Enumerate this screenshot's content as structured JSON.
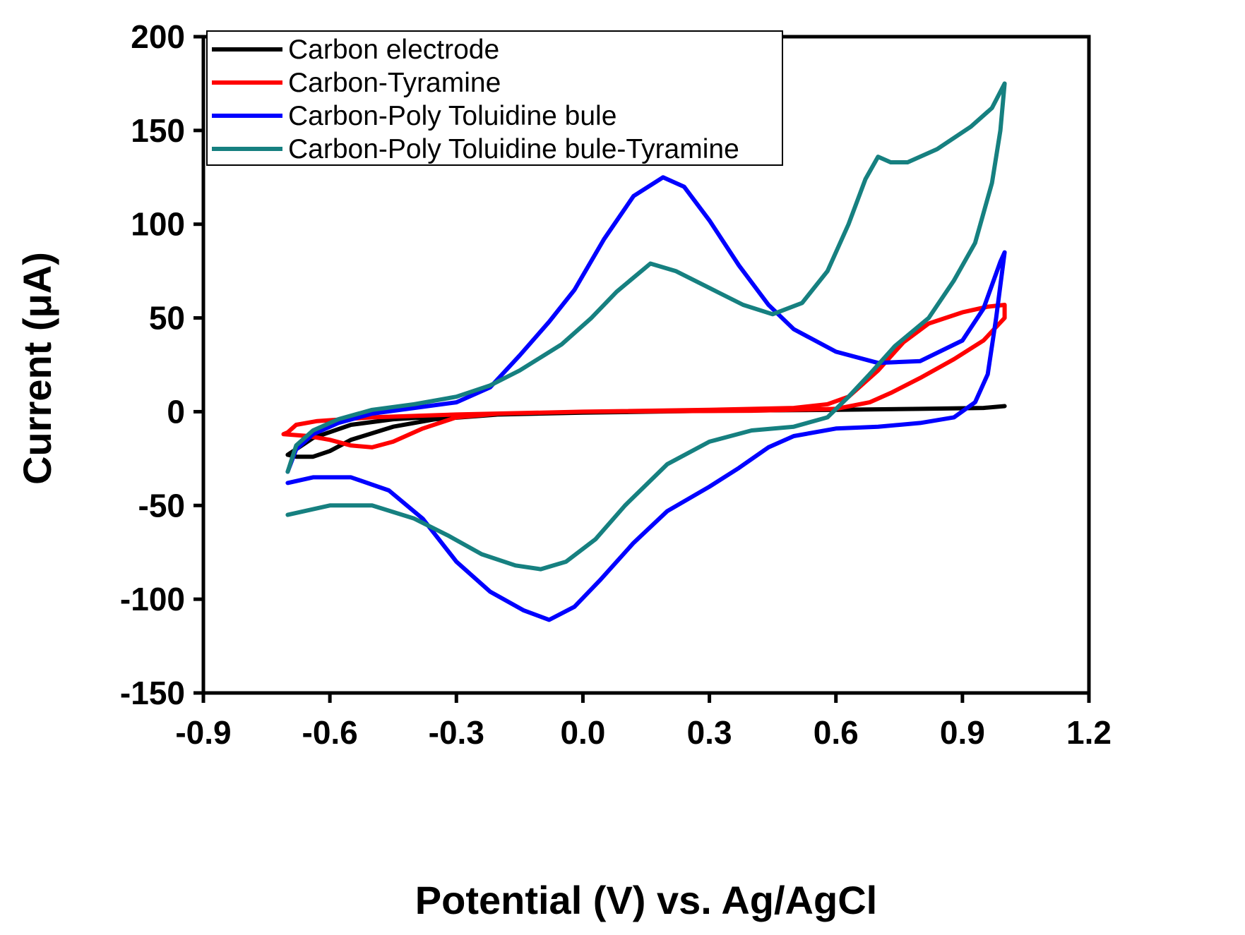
{
  "chart_data": {
    "type": "line",
    "title": "",
    "xlabel": "Potential (V) vs. Ag/AgCl",
    "ylabel": "Current (μA)",
    "xlim": [
      -0.9,
      1.2
    ],
    "ylim": [
      -150,
      200
    ],
    "x_ticks": [
      "-0.9",
      "-0.6",
      "-0.3",
      "0.0",
      "0.3",
      "0.6",
      "0.9",
      "1.2"
    ],
    "y_ticks": [
      "200",
      "150",
      "100",
      "50",
      "0",
      "-50",
      "-100",
      "-150"
    ],
    "grid": false,
    "legend_position": "top-left",
    "series": [
      {
        "name": "Carbon electrode",
        "color": "#000000",
        "points": [
          [
            -0.7,
            -23
          ],
          [
            -0.68,
            -20
          ],
          [
            -0.64,
            -14
          ],
          [
            -0.55,
            -7
          ],
          [
            -0.45,
            -4
          ],
          [
            -0.3,
            -2
          ],
          [
            0.0,
            -0.5
          ],
          [
            0.3,
            0.5
          ],
          [
            0.6,
            1
          ],
          [
            0.8,
            1.5
          ],
          [
            0.95,
            2
          ],
          [
            1.0,
            3
          ],
          [
            0.95,
            2
          ],
          [
            0.8,
            1.5
          ],
          [
            0.6,
            1
          ],
          [
            0.3,
            0.5
          ],
          [
            0.0,
            -0.5
          ],
          [
            -0.2,
            -1.5
          ],
          [
            -0.35,
            -4
          ],
          [
            -0.45,
            -8
          ],
          [
            -0.55,
            -15
          ],
          [
            -0.6,
            -21
          ],
          [
            -0.64,
            -24
          ],
          [
            -0.68,
            -24
          ],
          [
            -0.7,
            -23
          ]
        ]
      },
      {
        "name": "Carbon-Tyramine",
        "color": "#ff0000",
        "points": [
          [
            -0.71,
            -12
          ],
          [
            -0.7,
            -11
          ],
          [
            -0.68,
            -7
          ],
          [
            -0.63,
            -5
          ],
          [
            -0.5,
            -3
          ],
          [
            -0.3,
            -1.5
          ],
          [
            0.0,
            0
          ],
          [
            0.3,
            1
          ],
          [
            0.5,
            2
          ],
          [
            0.58,
            4
          ],
          [
            0.63,
            8
          ],
          [
            0.7,
            22
          ],
          [
            0.76,
            37
          ],
          [
            0.82,
            47
          ],
          [
            0.9,
            53
          ],
          [
            0.96,
            56
          ],
          [
            1.0,
            57
          ],
          [
            1.0,
            50
          ],
          [
            0.95,
            38
          ],
          [
            0.88,
            28
          ],
          [
            0.8,
            18
          ],
          [
            0.73,
            10
          ],
          [
            0.68,
            5
          ],
          [
            0.6,
            1.5
          ],
          [
            0.4,
            0.5
          ],
          [
            0.0,
            0
          ],
          [
            -0.2,
            -1
          ],
          [
            -0.3,
            -3
          ],
          [
            -0.38,
            -9
          ],
          [
            -0.45,
            -16
          ],
          [
            -0.5,
            -19
          ],
          [
            -0.55,
            -18
          ],
          [
            -0.6,
            -15
          ],
          [
            -0.65,
            -13
          ],
          [
            -0.71,
            -12
          ]
        ]
      },
      {
        "name": "Carbon-Poly Toluidine bule",
        "color": "#0000ff",
        "points": [
          [
            -0.7,
            -32
          ],
          [
            -0.68,
            -20
          ],
          [
            -0.64,
            -12
          ],
          [
            -0.58,
            -6
          ],
          [
            -0.5,
            -1
          ],
          [
            -0.4,
            2
          ],
          [
            -0.3,
            5
          ],
          [
            -0.22,
            13
          ],
          [
            -0.15,
            30
          ],
          [
            -0.08,
            48
          ],
          [
            -0.02,
            65
          ],
          [
            0.05,
            92
          ],
          [
            0.12,
            115
          ],
          [
            0.19,
            125
          ],
          [
            0.24,
            120
          ],
          [
            0.3,
            102
          ],
          [
            0.37,
            78
          ],
          [
            0.44,
            57
          ],
          [
            0.5,
            44
          ],
          [
            0.6,
            32
          ],
          [
            0.7,
            26
          ],
          [
            0.8,
            27
          ],
          [
            0.9,
            38
          ],
          [
            0.95,
            55
          ],
          [
            0.99,
            80
          ],
          [
            1.0,
            85
          ],
          [
            0.98,
            50
          ],
          [
            0.96,
            20
          ],
          [
            0.93,
            5
          ],
          [
            0.88,
            -3
          ],
          [
            0.8,
            -6
          ],
          [
            0.7,
            -8
          ],
          [
            0.6,
            -9
          ],
          [
            0.5,
            -13
          ],
          [
            0.44,
            -19
          ],
          [
            0.37,
            -30
          ],
          [
            0.3,
            -40
          ],
          [
            0.2,
            -53
          ],
          [
            0.12,
            -70
          ],
          [
            0.04,
            -90
          ],
          [
            -0.02,
            -104
          ],
          [
            -0.08,
            -111
          ],
          [
            -0.14,
            -106
          ],
          [
            -0.22,
            -96
          ],
          [
            -0.3,
            -80
          ],
          [
            -0.38,
            -57
          ],
          [
            -0.46,
            -42
          ],
          [
            -0.55,
            -35
          ],
          [
            -0.64,
            -35
          ],
          [
            -0.7,
            -38
          ]
        ]
      },
      {
        "name": "Carbon-Poly Toluidine bule-Tyramine",
        "color": "#168080",
        "points": [
          [
            -0.7,
            -32
          ],
          [
            -0.68,
            -18
          ],
          [
            -0.64,
            -10
          ],
          [
            -0.58,
            -4
          ],
          [
            -0.5,
            1
          ],
          [
            -0.4,
            4
          ],
          [
            -0.3,
            8
          ],
          [
            -0.22,
            14
          ],
          [
            -0.15,
            22
          ],
          [
            -0.05,
            36
          ],
          [
            0.02,
            50
          ],
          [
            0.08,
            64
          ],
          [
            0.16,
            79
          ],
          [
            0.22,
            75
          ],
          [
            0.3,
            66
          ],
          [
            0.38,
            57
          ],
          [
            0.45,
            52
          ],
          [
            0.52,
            58
          ],
          [
            0.58,
            75
          ],
          [
            0.63,
            100
          ],
          [
            0.67,
            124
          ],
          [
            0.7,
            136
          ],
          [
            0.73,
            133
          ],
          [
            0.77,
            133
          ],
          [
            0.84,
            140
          ],
          [
            0.92,
            152
          ],
          [
            0.97,
            162
          ],
          [
            1.0,
            175
          ],
          [
            0.99,
            150
          ],
          [
            0.97,
            122
          ],
          [
            0.93,
            90
          ],
          [
            0.88,
            70
          ],
          [
            0.82,
            50
          ],
          [
            0.74,
            35
          ],
          [
            0.68,
            20
          ],
          [
            0.63,
            8
          ],
          [
            0.58,
            -3
          ],
          [
            0.5,
            -8
          ],
          [
            0.4,
            -10
          ],
          [
            0.3,
            -16
          ],
          [
            0.2,
            -28
          ],
          [
            0.1,
            -50
          ],
          [
            0.03,
            -68
          ],
          [
            -0.04,
            -80
          ],
          [
            -0.1,
            -84
          ],
          [
            -0.16,
            -82
          ],
          [
            -0.24,
            -76
          ],
          [
            -0.32,
            -66
          ],
          [
            -0.4,
            -57
          ],
          [
            -0.5,
            -50
          ],
          [
            -0.6,
            -50
          ],
          [
            -0.7,
            -55
          ]
        ]
      }
    ]
  }
}
